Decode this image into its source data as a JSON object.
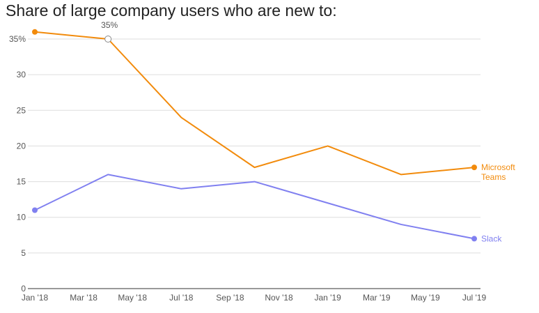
{
  "chart_data": {
    "type": "line",
    "title": "Share of large company users who are new to:",
    "x": [
      "2018-01",
      "2018-04",
      "2018-07",
      "2018-10",
      "2019-01",
      "2019-04",
      "2019-07"
    ],
    "x_tick_labels": [
      "Jan '18",
      "Mar '18",
      "May '18",
      "Jul '18",
      "Sep '18",
      "Nov '18",
      "Jan '19",
      "Mar '19",
      "May '19",
      "Jul '19"
    ],
    "y_tick_labels": [
      "0",
      "5",
      "10",
      "15",
      "20",
      "25",
      "30",
      "35%"
    ],
    "ylim": [
      0,
      35
    ],
    "grid": true,
    "legend": "inline-right",
    "series": [
      {
        "name": "Microsoft Teams",
        "color": "#f28b0c",
        "values": [
          36,
          35,
          24,
          17,
          20,
          16,
          17
        ]
      },
      {
        "name": "Slack",
        "color": "#8080f0",
        "values": [
          11,
          16,
          14,
          15,
          12,
          9,
          7
        ]
      }
    ],
    "annotations": [
      {
        "series": 0,
        "point": 1,
        "text": "35%"
      }
    ]
  }
}
